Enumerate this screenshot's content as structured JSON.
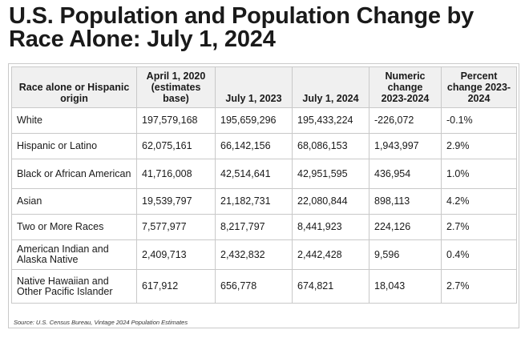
{
  "title": "U.S. Population and Population Change by Race Alone: July 1, 2024",
  "table": {
    "headers": [
      "Race alone or Hispanic origin",
      "April 1, 2020 (estimates base)",
      "July 1, 2023",
      "July 1, 2024",
      "Numeric change 2023-2024",
      "Percent change 2023-2024"
    ],
    "rows": [
      [
        "White",
        "197,579,168",
        "195,659,296",
        "195,433,224",
        "-226,072",
        "-0.1%"
      ],
      [
        "Hispanic or Latino",
        "62,075,161",
        "66,142,156",
        "68,086,153",
        "1,943,997",
        "2.9%"
      ],
      [
        "Black or African American",
        "41,716,008",
        "42,514,641",
        "42,951,595",
        "436,954",
        "1.0%"
      ],
      [
        "Asian",
        "19,539,797",
        "21,182,731",
        "22,080,844",
        "898,113",
        "4.2%"
      ],
      [
        "Two or More Races",
        "7,577,977",
        "8,217,797",
        "8,441,923",
        "224,126",
        "2.7%"
      ],
      [
        "American Indian and Alaska Native",
        "2,409,713",
        "2,432,832",
        "2,442,428",
        "9,596",
        "0.4%"
      ],
      [
        "Native Hawaiian and Other Pacific Islander",
        "617,912",
        "656,778",
        "674,821",
        "18,043",
        "2.7%"
      ]
    ]
  },
  "source": "Source: U.S. Census Bureau, Vintage 2024 Population Estimates"
}
